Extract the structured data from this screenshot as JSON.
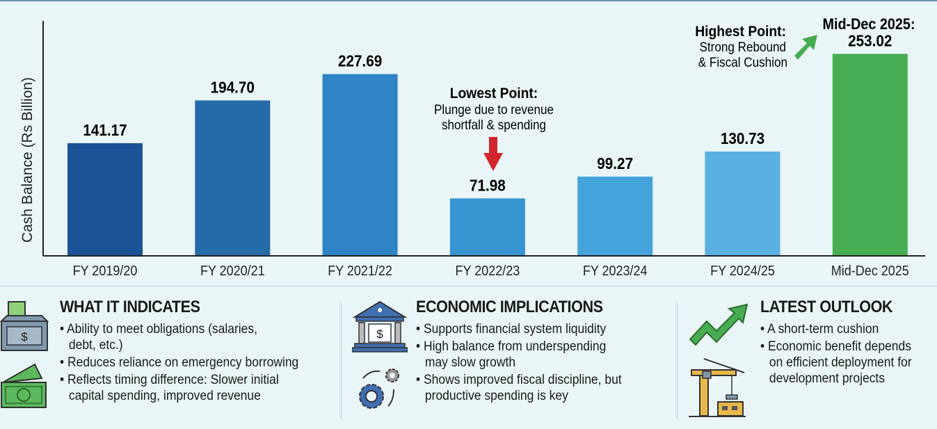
{
  "chart_data": {
    "type": "bar",
    "title": "",
    "xlabel": "",
    "ylabel": "Cash Balance (Rs Billion)",
    "categories": [
      "FY 2019/20",
      "FY 2020/21",
      "FY 2021/22",
      "FY 2022/23",
      "FY 2023/24",
      "FY 2024/25",
      "Mid-Dec 2025"
    ],
    "values": [
      141.17,
      194.7,
      227.69,
      71.98,
      99.27,
      130.73,
      253.02
    ],
    "data_labels": [
      "141.17",
      "194.70",
      "227.69",
      "71.98",
      "99.27",
      "130.73",
      "253.02"
    ],
    "last_label_prefix": "Mid-Dec 2025:",
    "colors": [
      "#1a5496",
      "#256ba8",
      "#2e84c4",
      "#3795d2",
      "#44a3da",
      "#5ab0e3",
      "#47ad52"
    ],
    "ylim": [
      0,
      290
    ],
    "grid": false,
    "annotations": {
      "lowest": {
        "title": "Lowest Point:",
        "line1": "Plunge due to revenue",
        "line2": "shortfall & spending",
        "arrow_color": "#d0262c"
      },
      "highest": {
        "title": "Highest Point:",
        "line1": "Strong Rebound",
        "line2": "& Fiscal Cushion",
        "arrow_color": "#47ad52"
      }
    }
  },
  "sections": [
    {
      "title": "WHAT IT INDICATES",
      "icons": [
        "cash-box-icon",
        "banknote-icon"
      ],
      "items": [
        "Ability to meet obligations (salaries,\ndebt, etc.)",
        "Reduces reliance on emergency borrowing",
        "Reflects timing difference: Slower initial\ncapital spending, improved revenue"
      ]
    },
    {
      "title": "ECONOMIC IMPLICATIONS",
      "icons": [
        "bank-icon",
        "gears-icon"
      ],
      "items": [
        "Supports financial system liquidity",
        "High balance from underspending\nmay slow growth",
        "Shows improved fiscal discipline, but\nproductive spending is key"
      ]
    },
    {
      "title": "LATEST OUTLOOK",
      "icons": [
        "trend-up-arrow-icon",
        "construction-crane-icon"
      ],
      "items": [
        "A short-term cushion",
        "Economic benefit depends\non efficient deployment for\ndevelopment projects"
      ]
    }
  ]
}
